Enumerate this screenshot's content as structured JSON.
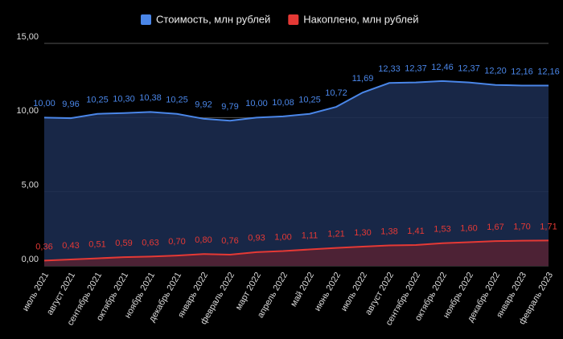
{
  "chart_data": {
    "type": "area",
    "categories": [
      "июль 2021",
      "август 2021",
      "сентябрь 2021",
      "октябрь 2021",
      "ноябрь 2021",
      "декабрь 2021",
      "январь 2022",
      "февраль 2022",
      "март 2022",
      "апрель 2022",
      "май 2022",
      "июнь 2022",
      "июль 2022",
      "август 2022",
      "сентябрь 2022",
      "октябрь 2022",
      "ноябрь 2022",
      "декабрь 2022",
      "январь 2023",
      "февраль 2023"
    ],
    "series": [
      {
        "name": "Стоимость, млн рублей",
        "color": "#4a86e8",
        "fill": "#1b2b4f",
        "values": [
          10.0,
          9.96,
          10.25,
          10.3,
          10.38,
          10.25,
          9.92,
          9.79,
          10.0,
          10.08,
          10.25,
          10.72,
          11.69,
          12.33,
          12.37,
          12.46,
          12.37,
          12.2,
          12.16,
          12.16
        ],
        "value_labels": [
          "10,00",
          "9,96",
          "10,25",
          "10,30",
          "10,38",
          "10,25",
          "9,92",
          "9,79",
          "10,00",
          "10,08",
          "10,25",
          "10,72",
          "11,69",
          "12,33",
          "12,37",
          "12,46",
          "12,37",
          "12,20",
          "12,16",
          "12,16"
        ]
      },
      {
        "name": "Накоплено, млн рублей",
        "color": "#e53935",
        "fill": "#532233",
        "values": [
          0.36,
          0.43,
          0.51,
          0.59,
          0.63,
          0.7,
          0.8,
          0.76,
          0.93,
          1.0,
          1.11,
          1.21,
          1.3,
          1.38,
          1.41,
          1.53,
          1.6,
          1.67,
          1.7,
          1.71
        ],
        "value_labels": [
          "0,36",
          "0,43",
          "0,51",
          "0,59",
          "0,63",
          "0,70",
          "0,80",
          "0,76",
          "0,93",
          "1,00",
          "1,11",
          "1,21",
          "1,30",
          "1,38",
          "1,41",
          "1,53",
          "1,60",
          "1,67",
          "1,70",
          "1,71"
        ]
      }
    ],
    "ylim": [
      0,
      15
    ],
    "yticks": [
      {
        "value": 0,
        "label": "0,00"
      },
      {
        "value": 5,
        "label": "5,00"
      },
      {
        "value": 10,
        "label": "10,00"
      },
      {
        "value": 15,
        "label": "15,00"
      }
    ],
    "grid": true,
    "legend": "top"
  }
}
